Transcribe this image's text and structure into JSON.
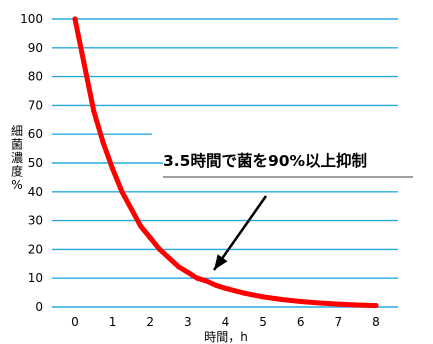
{
  "chart_data": {
    "type": "line",
    "xlabel": "時間，h",
    "ylabel": [
      "細",
      "菌",
      "濃",
      "度",
      "%"
    ],
    "xlim": [
      0,
      8
    ],
    "ylim": [
      0,
      100
    ],
    "x_ticks": [
      "0",
      "1",
      "2",
      "3",
      "4",
      "5",
      "6",
      "7",
      "8"
    ],
    "y_ticks": [
      "0",
      "10",
      "20",
      "30",
      "40",
      "50",
      "60",
      "70",
      "80",
      "90",
      "100"
    ],
    "grid": "horizontal",
    "series": [
      {
        "color": "#ff0000",
        "x": [
          0,
          0.25,
          0.5,
          0.75,
          1,
          1.25,
          1.5,
          1.75,
          2,
          2.25,
          2.5,
          2.75,
          3,
          3.25,
          3.5,
          3.75,
          4,
          4.5,
          5,
          5.5,
          6,
          6.5,
          7,
          7.5,
          8
        ],
        "y": [
          100,
          84,
          68,
          57,
          48,
          40,
          34,
          28,
          24,
          20,
          17,
          14,
          12,
          10,
          9,
          7.5,
          6.5,
          4.8,
          3.5,
          2.6,
          1.9,
          1.4,
          1.0,
          0.7,
          0.5
        ]
      }
    ],
    "annotation": {
      "text": "3.5時間で菌を90%以上抑制",
      "x": 3.5,
      "y": 9
    },
    "colors": {
      "grid": "#29abe2",
      "line": "#ff0000",
      "arrow": "#000000"
    }
  }
}
